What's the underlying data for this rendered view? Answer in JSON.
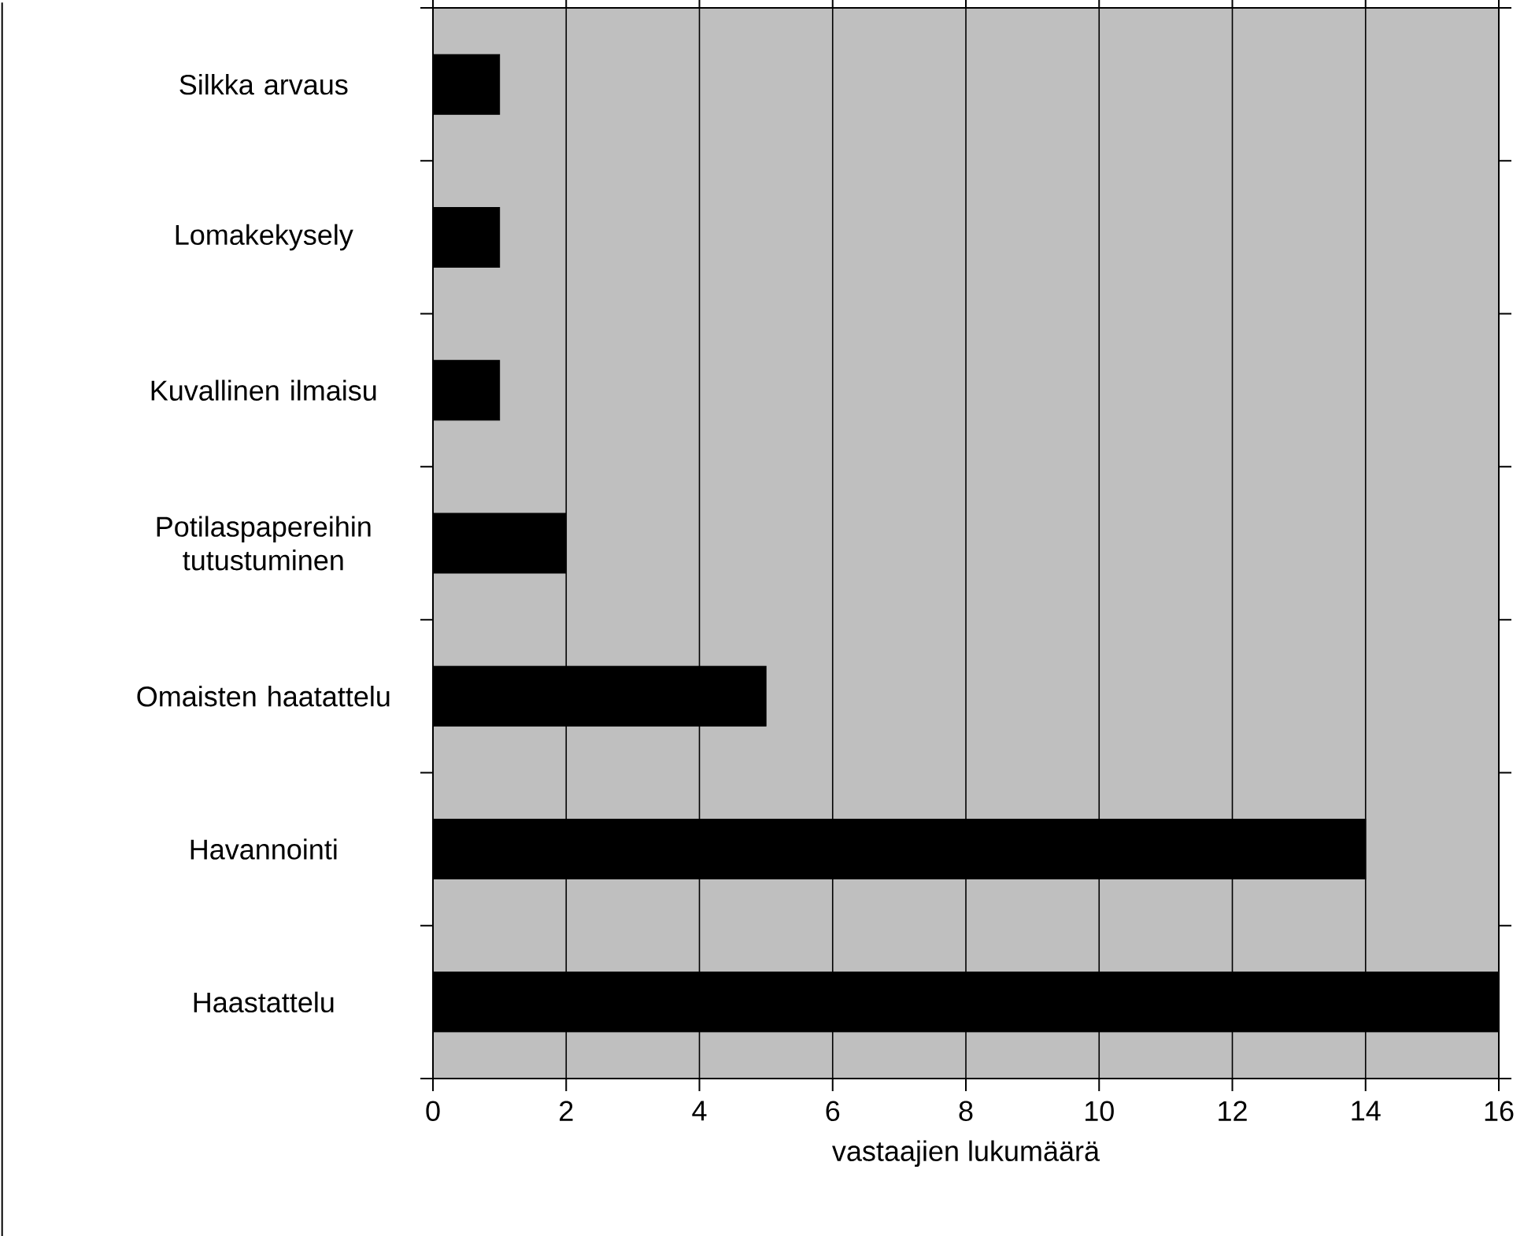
{
  "chart_data": {
    "type": "bar",
    "orientation": "horizontal",
    "xlabel": "vastaajien lukumäärä",
    "categories": [
      "Silkka arvaus",
      "Lomakekysely",
      "Kuvallinen ilmaisu",
      "Potilaspapereihin tutustuminen",
      "Omaisten haatattelu",
      "Havannointi",
      "Haastattelu"
    ],
    "values": [
      1,
      1,
      1,
      2,
      5,
      14,
      16
    ],
    "color": "#000000",
    "xlim": [
      0,
      16
    ],
    "xticks": [
      0,
      2,
      4,
      6,
      8,
      10,
      12,
      14,
      16
    ],
    "grid": "x"
  }
}
